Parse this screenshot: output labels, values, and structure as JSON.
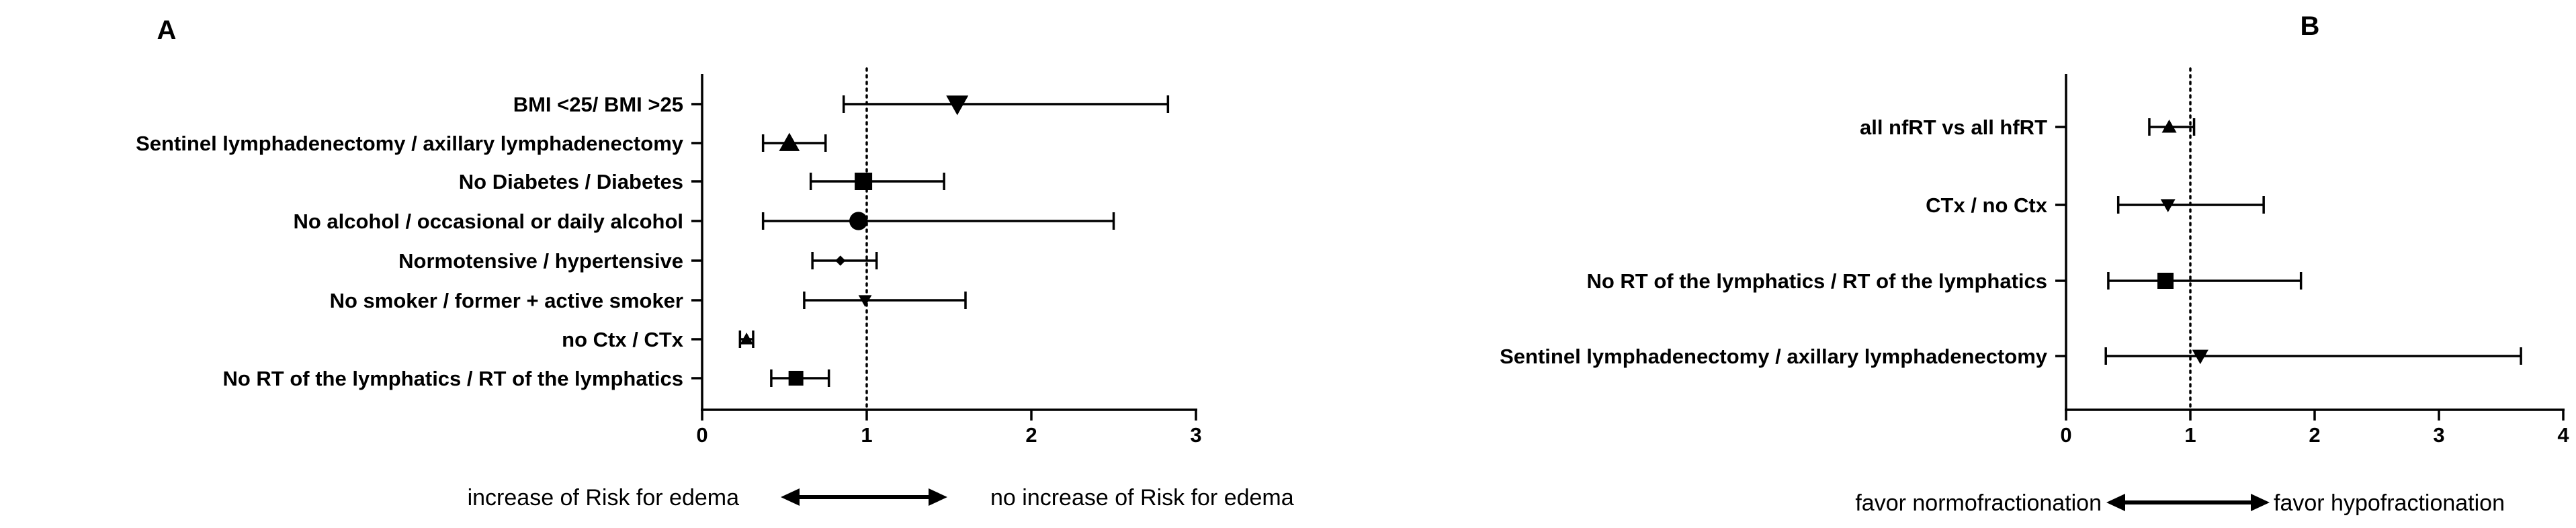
{
  "chart_data": [
    {
      "panel": "A",
      "type": "scatter",
      "subtype": "forest-plot",
      "xlim": [
        0,
        3
      ],
      "xticks": [
        0,
        1,
        2,
        3
      ],
      "reference_line": 1,
      "grid": false,
      "rows": [
        {
          "label": "BMI <25/ BMI >25",
          "estimate": 1.55,
          "lower": 0.86,
          "upper": 2.83,
          "marker": "triangle-down"
        },
        {
          "label": "Sentinel lymphadenectomy / axillary lymphadenectomy",
          "estimate": 0.53,
          "lower": 0.37,
          "upper": 0.75,
          "marker": "triangle-up"
        },
        {
          "label": "No Diabetes / Diabetes",
          "estimate": 0.98,
          "lower": 0.66,
          "upper": 1.47,
          "marker": "square"
        },
        {
          "label": "No alcohol / occasional or daily alcohol",
          "estimate": 0.95,
          "lower": 0.37,
          "upper": 2.5,
          "marker": "circle"
        },
        {
          "label": "Normotensive / hypertensive",
          "estimate": 0.84,
          "lower": 0.67,
          "upper": 1.06,
          "marker": "diamond"
        },
        {
          "label": "No smoker / former + active smoker",
          "estimate": 0.99,
          "lower": 0.62,
          "upper": 1.6,
          "marker": "triangle-down"
        },
        {
          "label": "no Ctx / CTx",
          "estimate": 0.27,
          "lower": 0.23,
          "upper": 0.31,
          "marker": "triangle-up"
        },
        {
          "label": "No RT of the lymphatics / RT of the lymphatics",
          "estimate": 0.57,
          "lower": 0.42,
          "upper": 0.77,
          "marker": "square"
        }
      ],
      "direction_labels": {
        "left": "increase of Risk for edema",
        "right": "no increase of Risk for edema"
      }
    },
    {
      "panel": "B",
      "type": "scatter",
      "subtype": "forest-plot",
      "xlim": [
        0,
        4
      ],
      "xticks": [
        0,
        1,
        2,
        3,
        4
      ],
      "reference_line": 1,
      "grid": false,
      "rows": [
        {
          "label": "all nfRT vs all hfRT",
          "estimate": 0.83,
          "lower": 0.67,
          "upper": 1.03,
          "marker": "triangle-up"
        },
        {
          "label": "CTx / no Ctx",
          "estimate": 0.82,
          "lower": 0.42,
          "upper": 1.59,
          "marker": "triangle-down"
        },
        {
          "label": "No RT of the lymphatics / RT of the lymphatics",
          "estimate": 0.8,
          "lower": 0.34,
          "upper": 1.89,
          "marker": "square"
        },
        {
          "label": "Sentinel lymphadenectomy / axillary lymphadenectomy",
          "estimate": 1.08,
          "lower": 0.32,
          "upper": 3.66,
          "marker": "triangle-down"
        }
      ],
      "direction_labels": {
        "left": "favor normofractionation",
        "right": "favor hypofractionation"
      }
    }
  ]
}
